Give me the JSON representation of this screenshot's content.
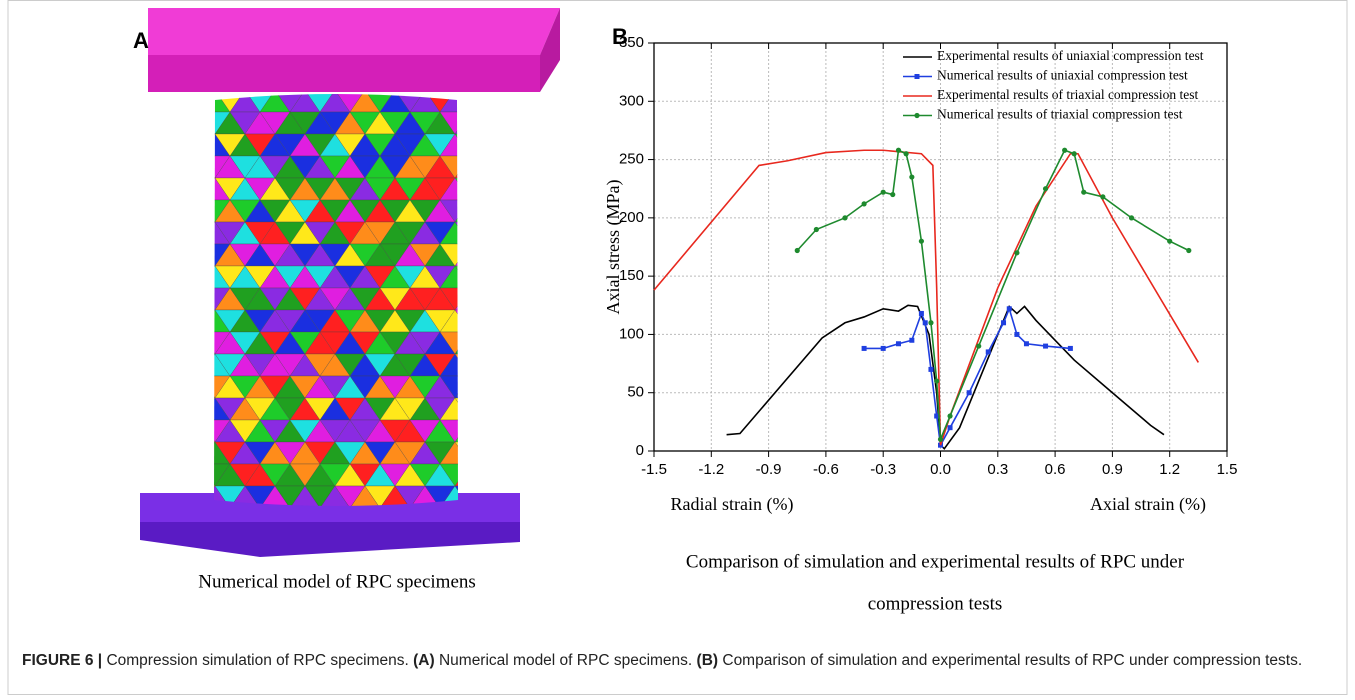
{
  "panel_a": {
    "label": "A",
    "caption": "Numerical model of RPC specimens"
  },
  "panel_b": {
    "label": "B",
    "caption": [
      "Comparison of simulation and experimental results of RPC   under",
      "compression tests"
    ]
  },
  "chart_data": {
    "type": "line",
    "x_label_left": "Radial strain (%)",
    "x_label_right": "Axial strain (%)",
    "y_label": "Axial stress (MPa)",
    "xlim": [
      -1.5,
      1.5
    ],
    "xticks": [
      -1.5,
      -1.2,
      -0.9,
      -0.6,
      -0.3,
      {
        "value": 0,
        "label": "0.0"
      },
      0.3,
      0.6,
      0.9,
      1.2,
      1.5
    ],
    "ylim": [
      0,
      350
    ],
    "yticks": [
      0,
      50,
      100,
      150,
      200,
      250,
      300,
      350
    ],
    "grid": true,
    "legend": "upper right",
    "series": [
      {
        "name": "Experimental results of uniaxial compression test",
        "color": "#000000",
        "marker": "none",
        "x": [
          -1.12,
          -1.05,
          -0.62,
          -0.5,
          -0.4,
          -0.3,
          -0.22,
          -0.17,
          -0.12,
          -0.06,
          -0.02,
          0.0,
          0.02,
          0.1,
          0.2,
          0.3,
          0.36,
          0.4,
          0.44,
          0.5,
          0.7,
          0.9,
          1.1,
          1.17
        ],
        "values": [
          14,
          15,
          97,
          110,
          115,
          122,
          120,
          125,
          124,
          100,
          50,
          5,
          2,
          20,
          60,
          100,
          124,
          118,
          124,
          112,
          78,
          50,
          22,
          14
        ]
      },
      {
        "name": "Numerical results of uniaxial compression test",
        "color": "#1f3fe0",
        "marker": "square",
        "x": [
          -0.4,
          -0.3,
          -0.22,
          -0.15,
          -0.1,
          -0.08,
          -0.05,
          -0.02,
          0.0,
          0.05,
          0.15,
          0.25,
          0.33,
          0.36,
          0.4,
          0.45,
          0.55,
          0.68
        ],
        "values": [
          88,
          88,
          92,
          95,
          118,
          110,
          70,
          30,
          5,
          20,
          50,
          85,
          110,
          122,
          100,
          92,
          90,
          88
        ]
      },
      {
        "name": "Experimental results of triaxial compression test",
        "color": "#e8281e",
        "marker": "none",
        "x": [
          -1.5,
          -0.95,
          -0.8,
          -0.6,
          -0.4,
          -0.3,
          -0.1,
          -0.04,
          -0.02,
          0.0,
          0.05,
          0.3,
          0.5,
          0.68,
          0.72,
          0.9,
          1.35
        ],
        "values": [
          138,
          245,
          249,
          256,
          258,
          258,
          255,
          245,
          140,
          5,
          30,
          140,
          210,
          255,
          255,
          200,
          76
        ]
      },
      {
        "name": "Numerical results of triaxial compression test",
        "color": "#1e8a2e",
        "marker": "circle",
        "x": [
          -0.75,
          -0.65,
          -0.5,
          -0.4,
          -0.3,
          -0.25,
          -0.22,
          -0.18,
          -0.15,
          -0.1,
          -0.05,
          -0.02,
          0.0,
          0.05,
          0.2,
          0.4,
          0.55,
          0.65,
          0.7,
          0.75,
          0.85,
          1.0,
          1.2,
          1.3
        ],
        "values": [
          172,
          190,
          200,
          212,
          222,
          220,
          258,
          255,
          235,
          180,
          110,
          60,
          10,
          30,
          90,
          170,
          225,
          258,
          255,
          222,
          218,
          200,
          180,
          172
        ]
      }
    ]
  },
  "figure_caption": [
    {
      "text": "FIGURE 6 |",
      "bold": true
    },
    {
      "text": " Compression simulation of RPC specimens. ",
      "bold": false
    },
    {
      "text": "(A)",
      "bold": true
    },
    {
      "text": " Numerical model of RPC specimens. ",
      "bold": false
    },
    {
      "text": "(B)",
      "bold": true
    },
    {
      "text": " Comparison of simulation and experimental results of RPC under compression tests.",
      "bold": false
    }
  ]
}
